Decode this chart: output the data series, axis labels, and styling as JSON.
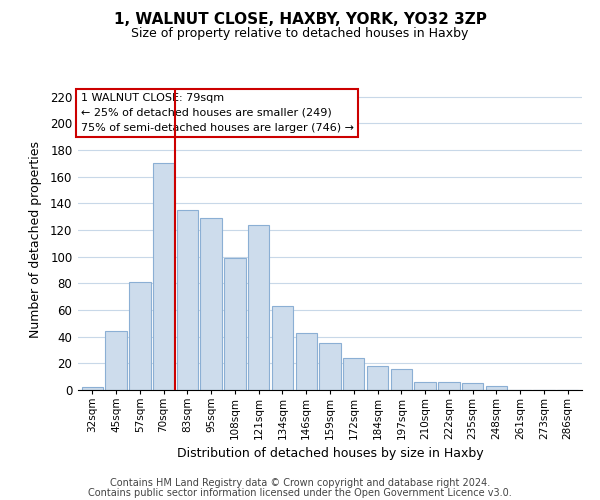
{
  "title": "1, WALNUT CLOSE, HAXBY, YORK, YO32 3ZP",
  "subtitle": "Size of property relative to detached houses in Haxby",
  "xlabel": "Distribution of detached houses by size in Haxby",
  "ylabel": "Number of detached properties",
  "bar_labels": [
    "32sqm",
    "45sqm",
    "57sqm",
    "70sqm",
    "83sqm",
    "95sqm",
    "108sqm",
    "121sqm",
    "134sqm",
    "146sqm",
    "159sqm",
    "172sqm",
    "184sqm",
    "197sqm",
    "210sqm",
    "222sqm",
    "235sqm",
    "248sqm",
    "261sqm",
    "273sqm",
    "286sqm"
  ],
  "bar_values": [
    2,
    44,
    81,
    170,
    135,
    129,
    99,
    124,
    63,
    43,
    35,
    24,
    18,
    16,
    6,
    6,
    5,
    3,
    0,
    0,
    0
  ],
  "bar_color": "#cddcec",
  "bar_edge_color": "#8bafd4",
  "vline_color": "#cc0000",
  "vline_x_index": 3.5,
  "ylim": [
    0,
    225
  ],
  "yticks": [
    0,
    20,
    40,
    60,
    80,
    100,
    120,
    140,
    160,
    180,
    200,
    220
  ],
  "annotation_title": "1 WALNUT CLOSE: 79sqm",
  "annotation_line1": "← 25% of detached houses are smaller (249)",
  "annotation_line2": "75% of semi-detached houses are larger (746) →",
  "annotation_box_color": "#ffffff",
  "annotation_box_edge": "#cc0000",
  "footnote1": "Contains HM Land Registry data © Crown copyright and database right 2024.",
  "footnote2": "Contains public sector information licensed under the Open Government Licence v3.0.",
  "background_color": "#ffffff",
  "grid_color": "#c8d8e8"
}
